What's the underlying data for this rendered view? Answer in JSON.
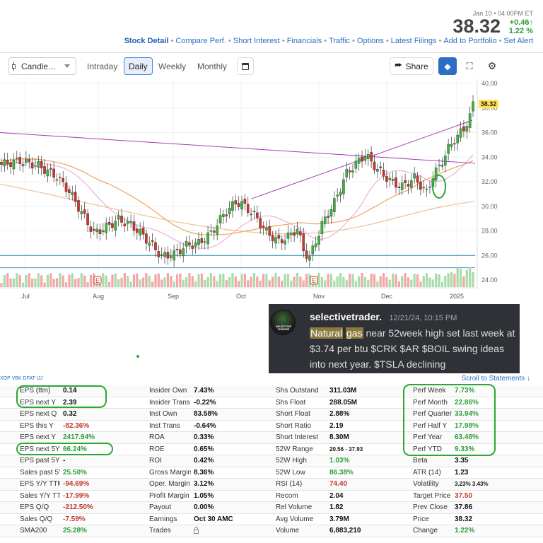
{
  "header": {
    "date": "Jan 10 • 04:00PM ET",
    "price": "38.32",
    "change_abs": "+0.46↑",
    "change_pct": "1.22 %",
    "nav": [
      "Stock Detail",
      "Compare Perf.",
      "Short Interest",
      "Financials",
      "Traffic",
      "Options",
      "Latest Filings",
      "Add to Portfolio",
      "Set Alert"
    ]
  },
  "toolbar": {
    "chart_type": "Candle...",
    "timeframes": [
      "Intraday",
      "Daily",
      "Weekly",
      "Monthly"
    ],
    "active_timeframe": "Daily",
    "share_label": "Share"
  },
  "chart": {
    "y_ticks": [
      "40.00",
      "38.00",
      "36.00",
      "34.00",
      "32.00",
      "30.00",
      "28.00",
      "26.00",
      "24.00"
    ],
    "x_ticks": [
      "Jul",
      "Aug",
      "Sep",
      "Oct",
      "Nov",
      "Dec",
      "2025"
    ],
    "last_price_label": "38.32",
    "earnings_marker": "E",
    "colors": {
      "up": "#3fb43f",
      "down": "#d1352b",
      "trend": "#a63ab3",
      "ma_orange": "#f2a25d",
      "ma_pink": "#eab2da",
      "ma_tan": "#e9c49a",
      "hline": "#2c8fb0"
    }
  },
  "tweet": {
    "username": "selectivetrader.",
    "timestamp": "12/21/24, 10:15 PM",
    "highlight1": "Natural",
    "highlight2": "gas",
    "text": " near 52week high set last week at $3.74 per btu $CRK $AR $BOIL swing ideas into next year.  $TSLA declining",
    "avatar_text": "SELECTIVE TRADER"
  },
  "peers": "XOP VBK DFAT IJJ",
  "scroll_link": "Scroll to Statements ↓",
  "fundamentals": [
    [
      [
        "EPS (ttm)",
        "0.14",
        ""
      ],
      [
        "Insider Own",
        "7.43%",
        ""
      ],
      [
        "Shs Outstand",
        "311.03M",
        ""
      ],
      [
        "Perf Week",
        "7.73%",
        "pos"
      ]
    ],
    [
      [
        "EPS next Y",
        "2.39",
        ""
      ],
      [
        "Insider Trans",
        "-0.22%",
        ""
      ],
      [
        "Shs Float",
        "288.05M",
        ""
      ],
      [
        "Perf Month",
        "22.86%",
        "pos"
      ]
    ],
    [
      [
        "EPS next Q",
        "0.32",
        ""
      ],
      [
        "Inst Own",
        "83.58%",
        ""
      ],
      [
        "Short Float",
        "2.88%",
        ""
      ],
      [
        "Perf Quarter",
        "33.94%",
        "pos"
      ]
    ],
    [
      [
        "EPS this Y",
        "-82.36%",
        "neg"
      ],
      [
        "Inst Trans",
        "-0.64%",
        ""
      ],
      [
        "Short Ratio",
        "2.19",
        ""
      ],
      [
        "Perf Half Y",
        "17.98%",
        "pos"
      ]
    ],
    [
      [
        "EPS next Y",
        "2417.94%",
        "pos"
      ],
      [
        "ROA",
        "0.33%",
        ""
      ],
      [
        "Short Interest",
        "8.30M",
        ""
      ],
      [
        "Perf Year",
        "63.48%",
        "pos"
      ]
    ],
    [
      [
        "EPS next 5Y",
        "66.24%",
        "pos"
      ],
      [
        "ROE",
        "0.65%",
        ""
      ],
      [
        "52W Range",
        "20.56 - 37.93",
        "small"
      ],
      [
        "Perf YTD",
        "9.33%",
        "pos"
      ]
    ],
    [
      [
        "EPS past 5Y",
        "-",
        ""
      ],
      [
        "ROI",
        "0.42%",
        ""
      ],
      [
        "52W High",
        "1.03%",
        "pos"
      ],
      [
        "Beta",
        "3.35",
        ""
      ]
    ],
    [
      [
        "Sales past 5Y",
        "25.50%",
        "pos"
      ],
      [
        "Gross Margin",
        "8.36%",
        ""
      ],
      [
        "52W Low",
        "86.38%",
        "pos"
      ],
      [
        "ATR (14)",
        "1.23",
        ""
      ]
    ],
    [
      [
        "EPS Y/Y TTM",
        "-94.69%",
        "neg"
      ],
      [
        "Oper. Margin",
        "3.12%",
        ""
      ],
      [
        "RSI (14)",
        "74.40",
        "neg"
      ],
      [
        "Volatility",
        "3.23% 3.43%",
        "small"
      ]
    ],
    [
      [
        "Sales Y/Y TTM",
        "-17.99%",
        "neg"
      ],
      [
        "Profit Margin",
        "1.05%",
        ""
      ],
      [
        "Recom",
        "2.04",
        ""
      ],
      [
        "Target Price",
        "37.50",
        "neg"
      ]
    ],
    [
      [
        "EPS Q/Q",
        "-212.50%",
        "neg"
      ],
      [
        "Payout",
        "0.00%",
        ""
      ],
      [
        "Rel Volume",
        "1.82",
        ""
      ],
      [
        "Prev Close",
        "37.86",
        ""
      ]
    ],
    [
      [
        "Sales Q/Q",
        "-7.59%",
        "neg"
      ],
      [
        "Earnings",
        "Oct 30 AMC",
        ""
      ],
      [
        "Avg Volume",
        "3.79M",
        ""
      ],
      [
        "Price",
        "38.32",
        ""
      ]
    ],
    [
      [
        "SMA200",
        "25.28%",
        "pos"
      ],
      [
        "Trades",
        "",
        "lock"
      ],
      [
        "Volume",
        "6,883,210",
        ""
      ],
      [
        "Change",
        "1.22%",
        "pos"
      ]
    ]
  ]
}
